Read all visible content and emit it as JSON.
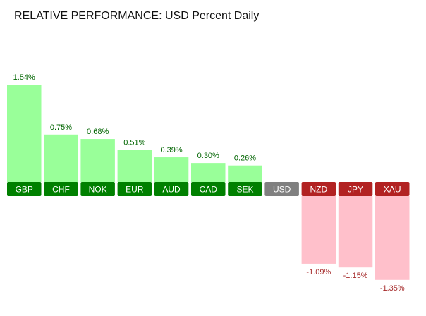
{
  "chart_data": {
    "type": "bar",
    "title": "RELATIVE PERFORMANCE: USD Percent Daily",
    "categories": [
      "GBP",
      "CHF",
      "NOK",
      "EUR",
      "AUD",
      "CAD",
      "SEK",
      "USD",
      "NZD",
      "JPY",
      "XAU"
    ],
    "values": [
      1.54,
      0.75,
      0.68,
      0.51,
      0.39,
      0.3,
      0.26,
      0.0,
      -1.09,
      -1.15,
      -1.35
    ],
    "value_labels": [
      "1.54%",
      "0.75%",
      "0.68%",
      "0.51%",
      "0.39%",
      "0.30%",
      "0.26%",
      "",
      "-1.09%",
      "-1.15%",
      "-1.35%"
    ],
    "base_category": "USD",
    "xlabel": "",
    "ylabel": "",
    "grid": false,
    "legend": "none",
    "colors": {
      "positive_bar": "#99ff99",
      "positive_label_bg": "#008000",
      "positive_text": "#006400",
      "negative_bar": "#ffc0cb",
      "negative_label_bg": "#b22222",
      "negative_text": "#a52a2a",
      "base_label_bg": "#808080"
    }
  }
}
